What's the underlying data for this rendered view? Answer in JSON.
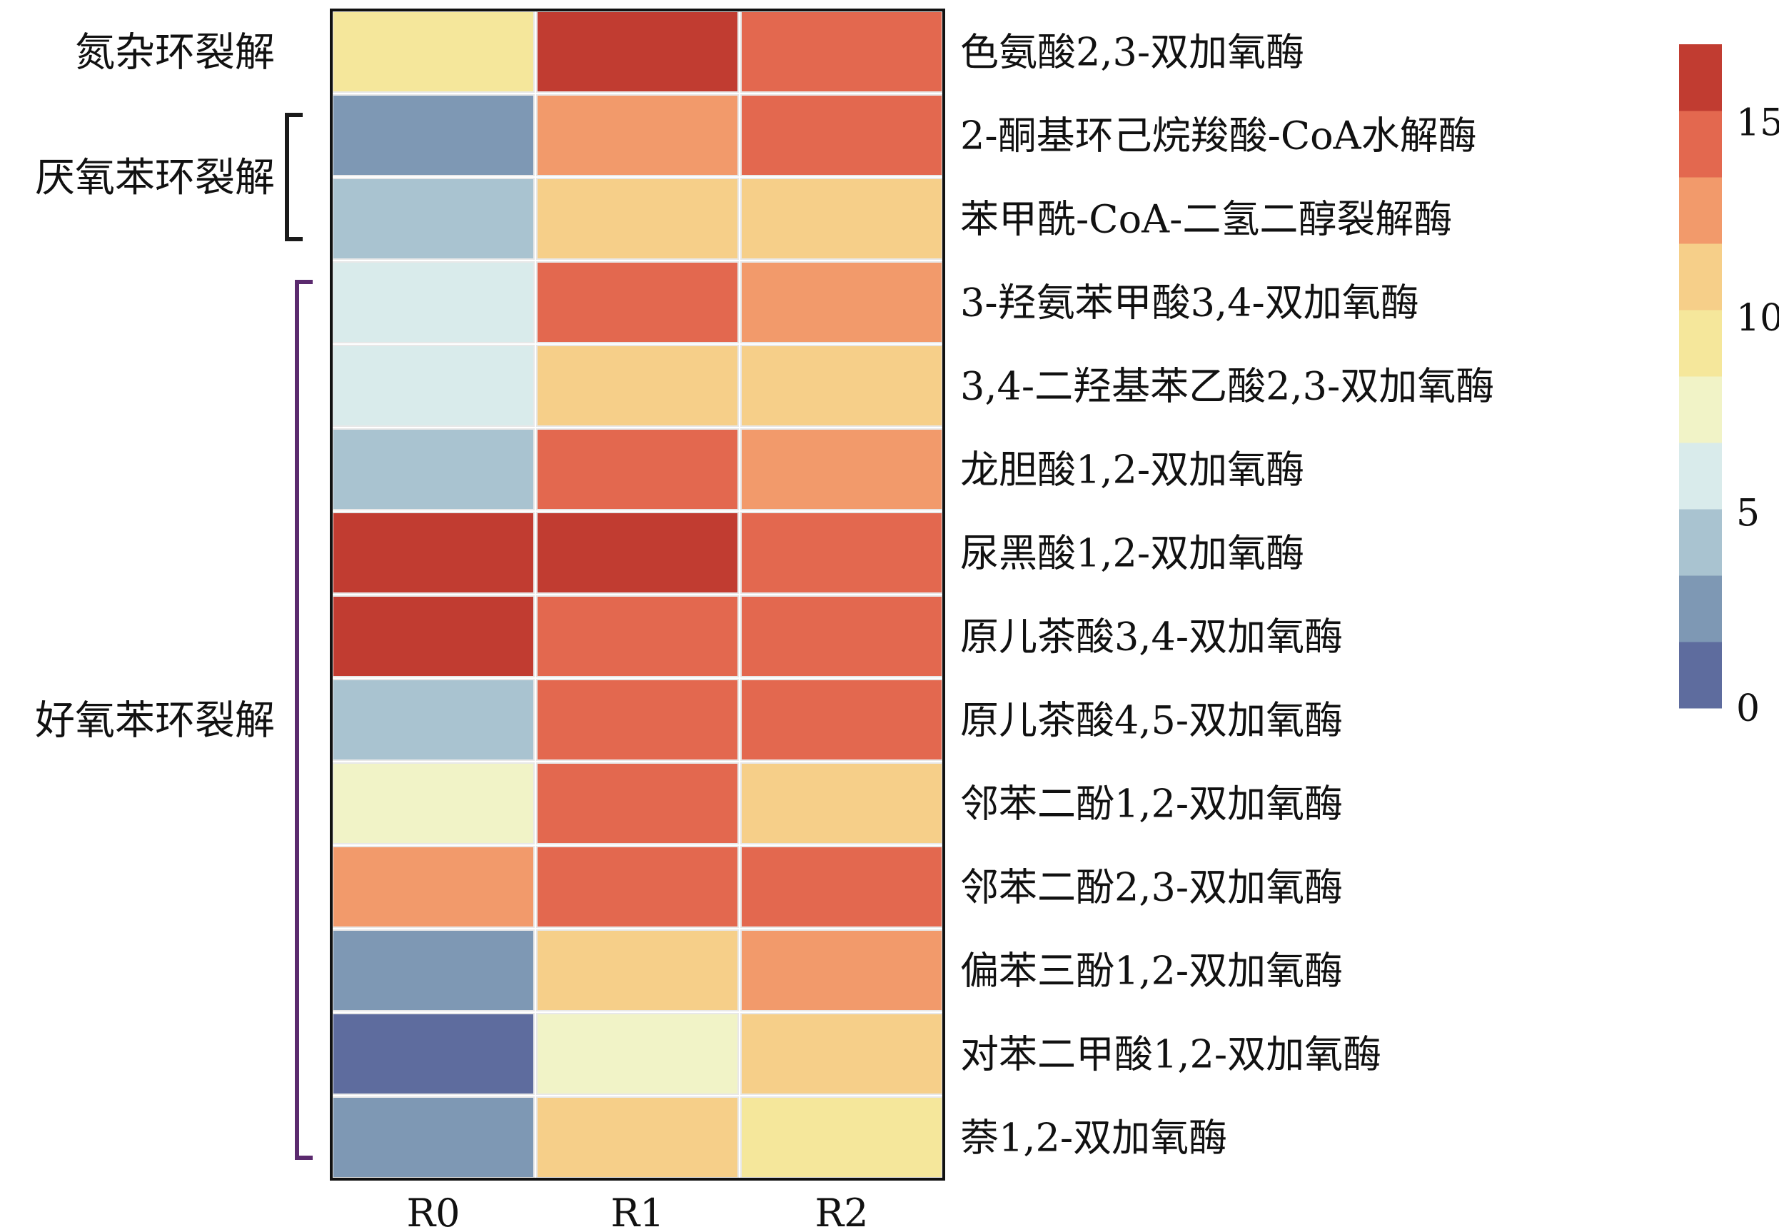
{
  "chart_data": {
    "type": "heatmap",
    "columns": [
      "R0",
      "R1",
      "R2"
    ],
    "rows": [
      "色氨酸2,3-双加氧酶",
      "2-酮基环己烷羧酸-CoA水解酶",
      "苯甲酰-CoA-二氢二醇裂解酶",
      "3-羟氨苯甲酸3,4-双加氧酶",
      "3,4-二羟基苯乙酸2,3-双加氧酶",
      "龙胆酸1,2-双加氧酶",
      "尿黑酸1,2-双加氧酶",
      "原儿茶酸3,4-双加氧酶",
      "原儿茶酸4,5-双加氧酶",
      "邻苯二酚1,2-双加氧酶",
      "邻苯二酚2,3-双加氧酶",
      "偏苯三酚1,2-双加氧酶",
      "对苯二甲酸1,2-双加氧酶",
      "萘1,2-双加氧酶"
    ],
    "values": [
      [
        9,
        16,
        14
      ],
      [
        3,
        12,
        14
      ],
      [
        4.5,
        10.5,
        10.5
      ],
      [
        6,
        14,
        12
      ],
      [
        6,
        10.5,
        10.5
      ],
      [
        4.5,
        14,
        12
      ],
      [
        16,
        16,
        14
      ],
      [
        16,
        14,
        14
      ],
      [
        4.5,
        14,
        14
      ],
      [
        7.5,
        14,
        10.5
      ],
      [
        12,
        14,
        14
      ],
      [
        3,
        10.5,
        12
      ],
      [
        1,
        7.5,
        10.5
      ],
      [
        3,
        10.5,
        9
      ]
    ],
    "groups": [
      {
        "label": "氮杂环裂解",
        "start": 0,
        "end": 0,
        "bracket": false,
        "color": "#1a1a1a"
      },
      {
        "label": "厌氧苯环裂解",
        "start": 1,
        "end": 2,
        "bracket": true,
        "color": "#1a1a1a"
      },
      {
        "label": "好氧苯环裂解",
        "start": 3,
        "end": 13,
        "bracket": true,
        "color": "#5b2a6e"
      }
    ],
    "colorbar": {
      "min": 0,
      "max": 17,
      "ticks": [
        0,
        5,
        10,
        15
      ],
      "colors": [
        "#5e6c9e",
        "#7e98b4",
        "#a9c3d0",
        "#d9ebeb",
        "#f1f3c7",
        "#f5e79b",
        "#f6cf89",
        "#f29a6b",
        "#e3684f",
        "#c13c31"
      ]
    }
  }
}
